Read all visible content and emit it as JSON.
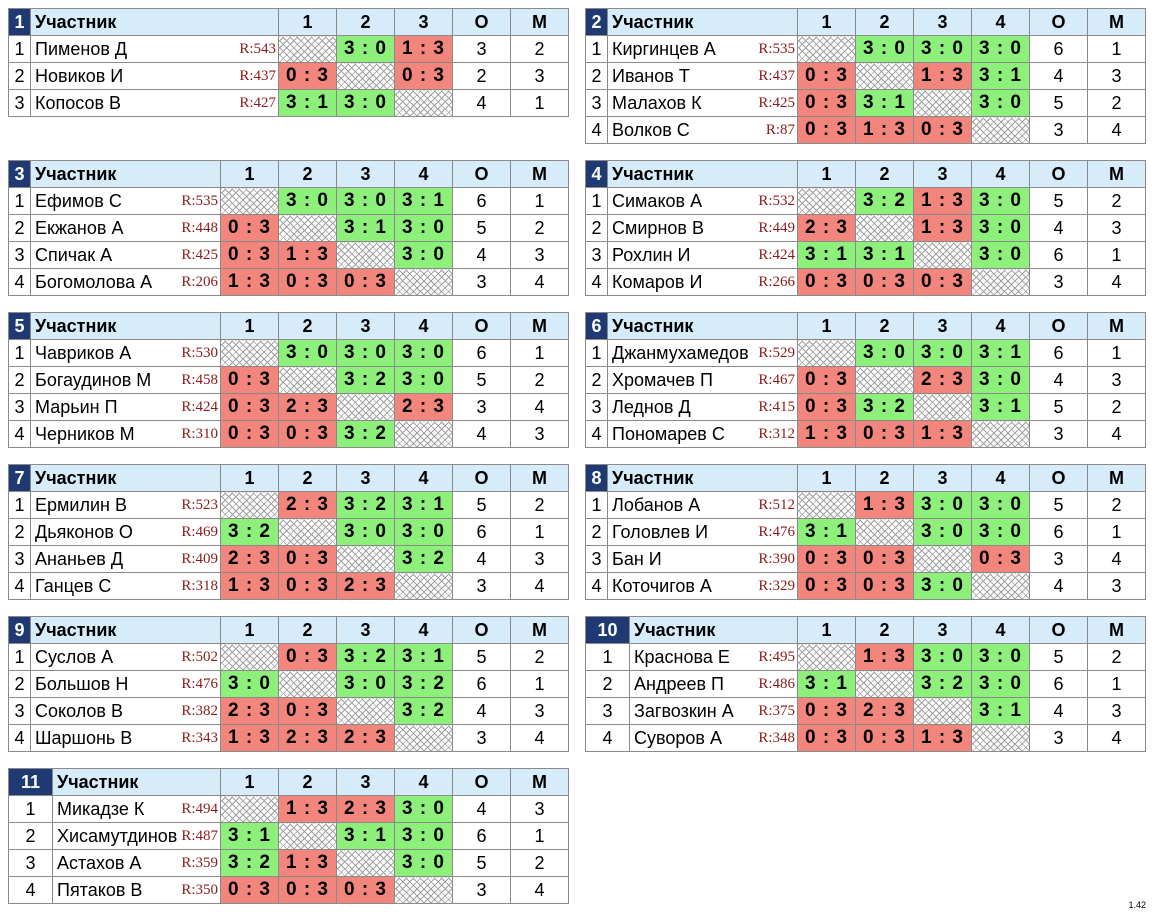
{
  "header_label": "Участник",
  "col_o": "О",
  "col_m": "М",
  "version": "1.42",
  "colors": {
    "win": "#8cf07a",
    "loss": "#f2857c",
    "header_bg": "#d6ecfa",
    "number_bg": "#1f3a73",
    "rating": "#8b1a1a"
  },
  "groups": [
    {
      "number": "1",
      "cols": [
        "1",
        "2",
        "3"
      ],
      "players": [
        {
          "idx": "1",
          "name": "Пименов Д",
          "rating": "R:543",
          "results": [
            "",
            "3 : 0",
            "1 : 3"
          ],
          "o": "3",
          "m": "2"
        },
        {
          "idx": "2",
          "name": "Новиков И",
          "rating": "R:437",
          "results": [
            "0 : 3",
            "",
            "0 : 3"
          ],
          "o": "2",
          "m": "3"
        },
        {
          "idx": "3",
          "name": "Копосов В",
          "rating": "R:427",
          "results": [
            "3 : 1",
            "3 : 0",
            ""
          ],
          "o": "4",
          "m": "1"
        }
      ]
    },
    {
      "number": "2",
      "cols": [
        "1",
        "2",
        "3",
        "4"
      ],
      "players": [
        {
          "idx": "1",
          "name": "Киргинцев А",
          "rating": "R:535",
          "results": [
            "",
            "3 : 0",
            "3 : 0",
            "3 : 0"
          ],
          "o": "6",
          "m": "1"
        },
        {
          "idx": "2",
          "name": "Иванов Т",
          "rating": "R:437",
          "results": [
            "0 : 3",
            "",
            "1 : 3",
            "3 : 1"
          ],
          "o": "4",
          "m": "3"
        },
        {
          "idx": "3",
          "name": "Малахов К",
          "rating": "R:425",
          "results": [
            "0 : 3",
            "3 : 1",
            "",
            "3 : 0"
          ],
          "o": "5",
          "m": "2"
        },
        {
          "idx": "4",
          "name": "Волков С",
          "rating": "R:87",
          "results": [
            "0 : 3",
            "1 : 3",
            "0 : 3",
            ""
          ],
          "o": "3",
          "m": "4"
        }
      ]
    },
    {
      "number": "3",
      "cols": [
        "1",
        "2",
        "3",
        "4"
      ],
      "players": [
        {
          "idx": "1",
          "name": "Ефимов С",
          "rating": "R:535",
          "results": [
            "",
            "3 : 0",
            "3 : 0",
            "3 : 1"
          ],
          "o": "6",
          "m": "1"
        },
        {
          "idx": "2",
          "name": "Екжанов А",
          "rating": "R:448",
          "results": [
            "0 : 3",
            "",
            "3 : 1",
            "3 : 0"
          ],
          "o": "5",
          "m": "2"
        },
        {
          "idx": "3",
          "name": "Спичак А",
          "rating": "R:425",
          "results": [
            "0 : 3",
            "1 : 3",
            "",
            "3 : 0"
          ],
          "o": "4",
          "m": "3"
        },
        {
          "idx": "4",
          "name": "Богомолова А",
          "rating": "R:206",
          "results": [
            "1 : 3",
            "0 : 3",
            "0 : 3",
            ""
          ],
          "o": "3",
          "m": "4"
        }
      ]
    },
    {
      "number": "4",
      "cols": [
        "1",
        "2",
        "3",
        "4"
      ],
      "players": [
        {
          "idx": "1",
          "name": "Симаков А",
          "rating": "R:532",
          "results": [
            "",
            "3 : 2",
            "1 : 3",
            "3 : 0"
          ],
          "o": "5",
          "m": "2"
        },
        {
          "idx": "2",
          "name": "Смирнов В",
          "rating": "R:449",
          "results": [
            "2 : 3",
            "",
            "1 : 3",
            "3 : 0"
          ],
          "o": "4",
          "m": "3"
        },
        {
          "idx": "3",
          "name": "Рохлин И",
          "rating": "R:424",
          "results": [
            "3 : 1",
            "3 : 1",
            "",
            "3 : 0"
          ],
          "o": "6",
          "m": "1"
        },
        {
          "idx": "4",
          "name": "Комаров И",
          "rating": "R:266",
          "results": [
            "0 : 3",
            "0 : 3",
            "0 : 3",
            ""
          ],
          "o": "3",
          "m": "4"
        }
      ]
    },
    {
      "number": "5",
      "cols": [
        "1",
        "2",
        "3",
        "4"
      ],
      "players": [
        {
          "idx": "1",
          "name": "Чавриков А",
          "rating": "R:530",
          "results": [
            "",
            "3 : 0",
            "3 : 0",
            "3 : 0"
          ],
          "o": "6",
          "m": "1"
        },
        {
          "idx": "2",
          "name": "Богаудинов М",
          "rating": "R:458",
          "results": [
            "0 : 3",
            "",
            "3 : 2",
            "3 : 0"
          ],
          "o": "5",
          "m": "2"
        },
        {
          "idx": "3",
          "name": "Марьин П",
          "rating": "R:424",
          "results": [
            "0 : 3",
            "2 : 3",
            "",
            "2 : 3"
          ],
          "o": "3",
          "m": "4"
        },
        {
          "idx": "4",
          "name": "Черников М",
          "rating": "R:310",
          "results": [
            "0 : 3",
            "0 : 3",
            "3 : 2",
            ""
          ],
          "o": "4",
          "m": "3"
        }
      ]
    },
    {
      "number": "6",
      "cols": [
        "1",
        "2",
        "3",
        "4"
      ],
      "players": [
        {
          "idx": "1",
          "name": "Джанмухамедов",
          "rating": "R:529",
          "results": [
            "",
            "3 : 0",
            "3 : 0",
            "3 : 1"
          ],
          "o": "6",
          "m": "1"
        },
        {
          "idx": "2",
          "name": "Хромачев П",
          "rating": "R:467",
          "results": [
            "0 : 3",
            "",
            "2 : 3",
            "3 : 0"
          ],
          "o": "4",
          "m": "3"
        },
        {
          "idx": "3",
          "name": "Леднов Д",
          "rating": "R:415",
          "results": [
            "0 : 3",
            "3 : 2",
            "",
            "3 : 1"
          ],
          "o": "5",
          "m": "2"
        },
        {
          "idx": "4",
          "name": "Пономарев С",
          "rating": "R:312",
          "results": [
            "1 : 3",
            "0 : 3",
            "1 : 3",
            ""
          ],
          "o": "3",
          "m": "4"
        }
      ]
    },
    {
      "number": "7",
      "cols": [
        "1",
        "2",
        "3",
        "4"
      ],
      "players": [
        {
          "idx": "1",
          "name": "Ермилин В",
          "rating": "R:523",
          "results": [
            "",
            "2 : 3",
            "3 : 2",
            "3 : 1"
          ],
          "o": "5",
          "m": "2"
        },
        {
          "idx": "2",
          "name": "Дьяконов О",
          "rating": "R:469",
          "results": [
            "3 : 2",
            "",
            "3 : 0",
            "3 : 0"
          ],
          "o": "6",
          "m": "1"
        },
        {
          "idx": "3",
          "name": "Ананьев Д",
          "rating": "R:409",
          "results": [
            "2 : 3",
            "0 : 3",
            "",
            "3 : 2"
          ],
          "o": "4",
          "m": "3"
        },
        {
          "idx": "4",
          "name": "Ганцев С",
          "rating": "R:318",
          "results": [
            "1 : 3",
            "0 : 3",
            "2 : 3",
            ""
          ],
          "o": "3",
          "m": "4"
        }
      ]
    },
    {
      "number": "8",
      "cols": [
        "1",
        "2",
        "3",
        "4"
      ],
      "players": [
        {
          "idx": "1",
          "name": "Лобанов А",
          "rating": "R:512",
          "results": [
            "",
            "1 : 3",
            "3 : 0",
            "3 : 0"
          ],
          "o": "5",
          "m": "2"
        },
        {
          "idx": "2",
          "name": "Головлев И",
          "rating": "R:476",
          "results": [
            "3 : 1",
            "",
            "3 : 0",
            "3 : 0"
          ],
          "o": "6",
          "m": "1"
        },
        {
          "idx": "3",
          "name": "Бан И",
          "rating": "R:390",
          "results": [
            "0 : 3",
            "0 : 3",
            "",
            "0 : 3"
          ],
          "o": "3",
          "m": "4"
        },
        {
          "idx": "4",
          "name": "Коточигов А",
          "rating": "R:329",
          "results": [
            "0 : 3",
            "0 : 3",
            "3 : 0",
            ""
          ],
          "o": "4",
          "m": "3"
        }
      ]
    },
    {
      "number": "9",
      "cols": [
        "1",
        "2",
        "3",
        "4"
      ],
      "players": [
        {
          "idx": "1",
          "name": "Суслов А",
          "rating": "R:502",
          "results": [
            "",
            "0 : 3",
            "3 : 2",
            "3 : 1"
          ],
          "o": "5",
          "m": "2"
        },
        {
          "idx": "2",
          "name": "Большов Н",
          "rating": "R:476",
          "results": [
            "3 : 0",
            "",
            "3 : 0",
            "3 : 2"
          ],
          "o": "6",
          "m": "1"
        },
        {
          "idx": "3",
          "name": "Соколов В",
          "rating": "R:382",
          "results": [
            "2 : 3",
            "0 : 3",
            "",
            "3 : 2"
          ],
          "o": "4",
          "m": "3"
        },
        {
          "idx": "4",
          "name": "Шаршонь В",
          "rating": "R:343",
          "results": [
            "1 : 3",
            "2 : 3",
            "2 : 3",
            ""
          ],
          "o": "3",
          "m": "4"
        }
      ]
    },
    {
      "number": "10",
      "cols": [
        "1",
        "2",
        "3",
        "4"
      ],
      "players": [
        {
          "idx": "1",
          "name": "Краснова Е",
          "rating": "R:495",
          "results": [
            "",
            "1 : 3",
            "3 : 0",
            "3 : 0"
          ],
          "o": "5",
          "m": "2"
        },
        {
          "idx": "2",
          "name": "Андреев П",
          "rating": "R:486",
          "results": [
            "3 : 1",
            "",
            "3 : 2",
            "3 : 0"
          ],
          "o": "6",
          "m": "1"
        },
        {
          "idx": "3",
          "name": "Загвозкин А",
          "rating": "R:375",
          "results": [
            "0 : 3",
            "2 : 3",
            "",
            "3 : 1"
          ],
          "o": "4",
          "m": "3"
        },
        {
          "idx": "4",
          "name": "Суворов А",
          "rating": "R:348",
          "results": [
            "0 : 3",
            "0 : 3",
            "1 : 3",
            ""
          ],
          "o": "3",
          "m": "4"
        }
      ]
    },
    {
      "number": "11",
      "cols": [
        "1",
        "2",
        "3",
        "4"
      ],
      "players": [
        {
          "idx": "1",
          "name": "Микадзе К",
          "rating": "R:494",
          "results": [
            "",
            "1 : 3",
            "2 : 3",
            "3 : 0"
          ],
          "o": "4",
          "m": "3"
        },
        {
          "idx": "2",
          "name": "Хисамутдинов",
          "rating": "R:487",
          "results": [
            "3 : 1",
            "",
            "3 : 1",
            "3 : 0"
          ],
          "o": "6",
          "m": "1"
        },
        {
          "idx": "3",
          "name": "Астахов А",
          "rating": "R:359",
          "results": [
            "3 : 2",
            "1 : 3",
            "",
            "3 : 0"
          ],
          "o": "5",
          "m": "2"
        },
        {
          "idx": "4",
          "name": "Пятаков В",
          "rating": "R:350",
          "results": [
            "0 : 3",
            "0 : 3",
            "0 : 3",
            ""
          ],
          "o": "3",
          "m": "4"
        }
      ]
    }
  ]
}
